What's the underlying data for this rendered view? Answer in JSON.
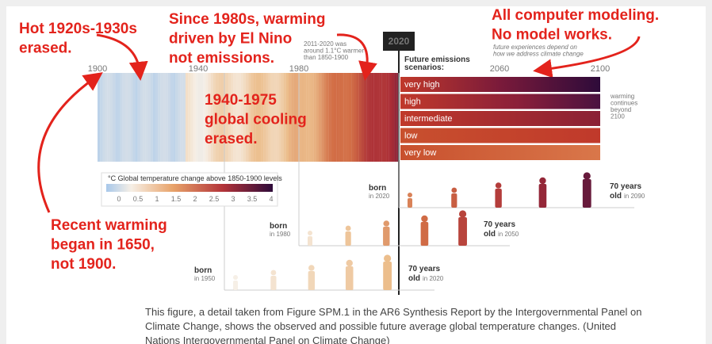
{
  "annotations": [
    {
      "lines": [
        "Hot 1920s-1930s",
        "erased."
      ]
    },
    {
      "lines": [
        "Since 1980s, warming",
        "driven by El Nino",
        "not emissions."
      ]
    },
    {
      "lines": [
        "All computer modeling.",
        "No model works."
      ]
    },
    {
      "lines": [
        "1940-1975",
        "global cooling",
        "erased."
      ]
    },
    {
      "lines": [
        "Recent warming",
        "began in 1650,",
        "not 1900."
      ]
    }
  ],
  "figure": {
    "years": [
      "1900",
      "1940",
      "1980",
      "2020",
      "2060",
      "2100"
    ],
    "note_2020": [
      "2011-2020 was",
      "around 1.1°C warmer",
      "than 1850-1900"
    ],
    "scenarios_title": [
      "Future emissions",
      "scenarios:"
    ],
    "future_note": [
      "future experiences depend on",
      "how we address climate change"
    ],
    "scenarios": [
      "very high",
      "high",
      "intermediate",
      "low",
      "very low"
    ],
    "continues_note": [
      "warming",
      "continues",
      "beyond",
      "2100"
    ],
    "legend": {
      "title": "°C Global temperature change above 1850-1900 levels",
      "ticks": [
        "0",
        "0.5",
        "1",
        "1.5",
        "2",
        "2.5",
        "3",
        "3.5",
        "4"
      ]
    },
    "generations": [
      {
        "born": "born",
        "born_year": "in 2020",
        "age": "70 years",
        "old": "old",
        "old_year": "in 2090"
      },
      {
        "born": "born",
        "born_year": "in 1980",
        "age": "70 years",
        "old": "old",
        "old_year": "in 2050"
      },
      {
        "born": "born",
        "born_year": "in 1950",
        "age": "70 years",
        "old": "old",
        "old_year": "in 2020"
      }
    ]
  },
  "caption": [
    "This figure, a detail taken from Figure SPM.1 in the AR6 Synthesis Report by the Intergovernmental Panel on",
    "Climate Change, shows the observed and possible future average global temperature changes. (United",
    "Nations Intergovernmental Panel on Climate Change)"
  ]
}
